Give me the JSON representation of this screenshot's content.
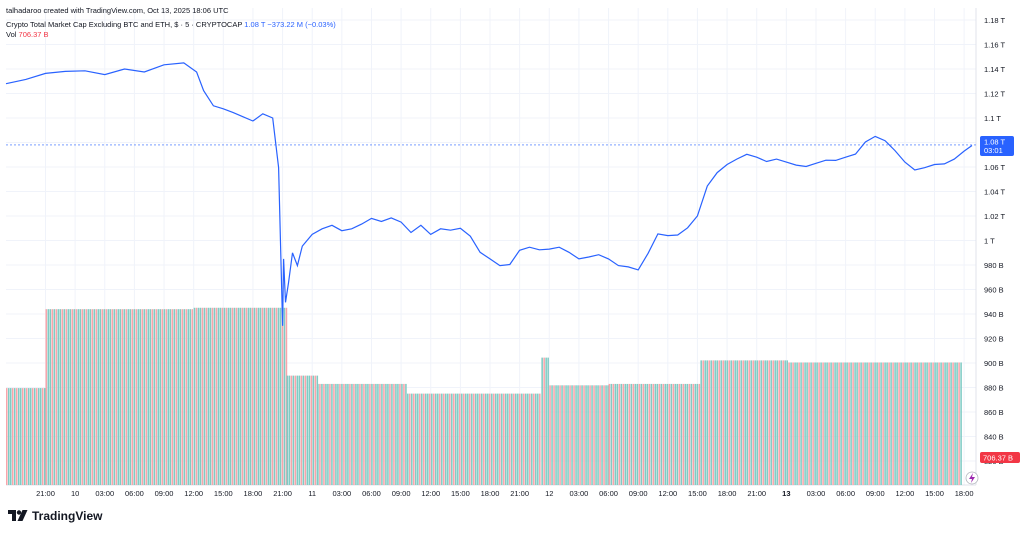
{
  "header": {
    "credit": "talhadaroo created with TradingView.com, Oct 13, 2025 18:06 UTC",
    "symbol_title": "Crypto Total Market Cap Excluding BTC and ETH, $ · 5 · CRYPTOCAP",
    "last_value": "1.08 T",
    "change": "−373.22 M (−0.03%)",
    "vol_label": "Vol",
    "vol_value": "706.37 B"
  },
  "price_badge": {
    "value": "1.08 T",
    "countdown": "03:01"
  },
  "volume_badge": "706.37 B",
  "brand": {
    "logo_text": "TradingView"
  },
  "colors": {
    "line": "#2962ff",
    "vol_up": "#80cbc4",
    "vol_down": "#f7a5ab",
    "grid": "#f0f3fa",
    "text": "#131722",
    "axis_text": "#131722",
    "badge_blue": "#2962ff",
    "badge_red": "#f23645"
  },
  "chart_data": {
    "type": "line",
    "ylim": [
      820,
      1180
    ],
    "y_ticks": [
      {
        "v": 1180,
        "label": "1.18 T"
      },
      {
        "v": 1160,
        "label": "1.16 T"
      },
      {
        "v": 1140,
        "label": "1.14 T"
      },
      {
        "v": 1120,
        "label": "1.12 T"
      },
      {
        "v": 1100,
        "label": "1.1 T"
      },
      {
        "v": 1080,
        "label": "1.08 T"
      },
      {
        "v": 1060,
        "label": "1.06 T"
      },
      {
        "v": 1040,
        "label": "1.04 T"
      },
      {
        "v": 1020,
        "label": "1.02 T"
      },
      {
        "v": 1000,
        "label": "1 T"
      },
      {
        "v": 980,
        "label": "980 B"
      },
      {
        "v": 960,
        "label": "960 B"
      },
      {
        "v": 940,
        "label": "940 B"
      },
      {
        "v": 920,
        "label": "920 B"
      },
      {
        "v": 900,
        "label": "900 B"
      },
      {
        "v": 880,
        "label": "880 B"
      },
      {
        "v": 860,
        "label": "860 B"
      },
      {
        "v": 840,
        "label": "840 B"
      },
      {
        "v": 820,
        "label": "820 B"
      }
    ],
    "x_range_hours": [
      -4,
      94.2
    ],
    "x_ticks": [
      {
        "h": 0,
        "label": "21:00"
      },
      {
        "h": 3,
        "label": "10",
        "bold": false
      },
      {
        "h": 6,
        "label": "03:00"
      },
      {
        "h": 9,
        "label": "06:00"
      },
      {
        "h": 12,
        "label": "09:00"
      },
      {
        "h": 15,
        "label": "12:00"
      },
      {
        "h": 18,
        "label": "15:00"
      },
      {
        "h": 21,
        "label": "18:00"
      },
      {
        "h": 24,
        "label": "21:00"
      },
      {
        "h": 27,
        "label": "11"
      },
      {
        "h": 30,
        "label": "03:00"
      },
      {
        "h": 33,
        "label": "06:00"
      },
      {
        "h": 36,
        "label": "09:00"
      },
      {
        "h": 39,
        "label": "12:00"
      },
      {
        "h": 42,
        "label": "15:00"
      },
      {
        "h": 45,
        "label": "18:00"
      },
      {
        "h": 48,
        "label": "21:00"
      },
      {
        "h": 51,
        "label": "12"
      },
      {
        "h": 54,
        "label": "03:00"
      },
      {
        "h": 57,
        "label": "06:00"
      },
      {
        "h": 60,
        "label": "09:00"
      },
      {
        "h": 63,
        "label": "12:00"
      },
      {
        "h": 66,
        "label": "15:00"
      },
      {
        "h": 69,
        "label": "18:00"
      },
      {
        "h": 72,
        "label": "21:00"
      },
      {
        "h": 75,
        "label": "13",
        "bold": true
      },
      {
        "h": 78,
        "label": "03:00"
      },
      {
        "h": 81,
        "label": "06:00"
      },
      {
        "h": 84,
        "label": "09:00"
      },
      {
        "h": 87,
        "label": "12:00"
      },
      {
        "h": 90,
        "label": "15:00"
      },
      {
        "h": 93,
        "label": "18:00"
      }
    ],
    "series": [
      {
        "name": "Crypto Total Market Cap Excluding BTC and ETH",
        "x_hours": [
          -4,
          -2,
          0,
          2,
          4,
          6,
          8,
          10,
          12,
          14,
          15.3,
          16,
          17,
          18,
          19,
          20,
          21,
          22,
          23,
          23.6,
          24,
          24.1,
          24.3,
          24.6,
          25,
          25.5,
          26,
          27,
          28,
          29,
          30,
          31,
          32,
          33,
          34,
          35,
          36,
          37,
          38,
          39,
          40,
          41,
          42,
          43,
          44,
          45,
          46,
          47,
          48,
          49,
          50,
          51,
          52,
          53,
          54,
          55,
          56,
          57,
          58,
          59,
          60,
          61,
          62,
          63,
          64,
          65,
          66,
          67,
          68,
          69,
          70,
          71,
          72,
          73,
          74,
          75,
          76,
          77,
          78,
          79,
          80,
          81,
          82,
          83,
          84,
          85,
          86,
          87,
          88,
          89,
          90,
          91,
          92,
          93,
          93.8
        ],
        "values": [
          1128,
          1132,
          1136,
          1138,
          1139,
          1135,
          1140,
          1138,
          1143,
          1145,
          1138,
          1122,
          1110,
          1108,
          1104,
          1101,
          1098,
          1103,
          1100,
          1060,
          930,
          985,
          950,
          965,
          990,
          980,
          995,
          1005,
          1010,
          1012,
          1008,
          1010,
          1013,
          1018,
          1016,
          1018,
          1015,
          1007,
          1012,
          1005,
          1010,
          1008,
          1010,
          1004,
          990,
          985,
          980,
          980,
          992,
          995,
          992,
          993,
          995,
          990,
          985,
          987,
          988,
          985,
          980,
          978,
          976,
          990,
          1005,
          1004,
          1005,
          1010,
          1020,
          1045,
          1055,
          1062,
          1067,
          1070,
          1068,
          1065,
          1066,
          1064,
          1062,
          1060,
          1063,
          1066,
          1065,
          1068,
          1071,
          1080,
          1085,
          1082,
          1073,
          1064,
          1058,
          1059,
          1062,
          1063,
          1066,
          1073,
          1078
        ]
      }
    ],
    "volume": {
      "ylim_b": [
        0,
        2600
      ],
      "segments": [
        {
          "from": -4,
          "to": 0,
          "value": 700
        },
        {
          "from": 0,
          "to": 15,
          "value": 1270
        },
        {
          "from": 15,
          "to": 24.4,
          "value": 1280
        },
        {
          "from": 24.4,
          "to": 27.5,
          "value": 790
        },
        {
          "from": 27.5,
          "to": 36.6,
          "value": 730
        },
        {
          "from": 36.6,
          "to": 50.2,
          "value": 660
        },
        {
          "from": 50.2,
          "to": 51,
          "value": 920
        },
        {
          "from": 51,
          "to": 57,
          "value": 720
        },
        {
          "from": 57,
          "to": 66.3,
          "value": 730
        },
        {
          "from": 66.3,
          "to": 75.2,
          "value": 900
        },
        {
          "from": 75.2,
          "to": 92.8,
          "value": 885
        }
      ]
    }
  }
}
